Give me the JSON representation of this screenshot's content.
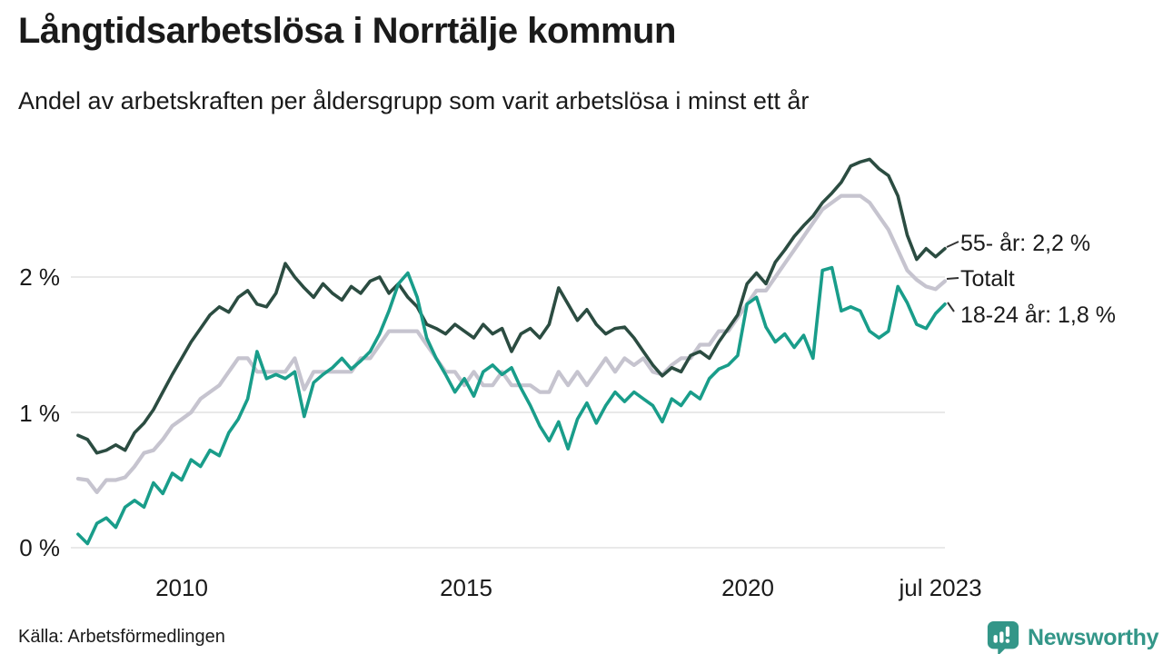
{
  "header": {
    "title": "Långtidsarbetslösa i Norrtälje kommun",
    "subtitle": "Andel av arbetskraften per åldersgrupp som varit arbetslösa i minst ett år"
  },
  "source": {
    "label": "Källa: Arbetsförmedlingen"
  },
  "branding": {
    "name": "Newsworthy",
    "icon": "bar-chart-speech-bubble-icon",
    "color": "#339688"
  },
  "colors": {
    "series_55": "#2b4c41",
    "series_totalt": "#c6c4cf",
    "series_1824": "#199d8a",
    "gridline": "#e2e2e2",
    "text": "#1a1a1a",
    "connector": "#333333"
  },
  "chart_data": {
    "type": "line",
    "title": "Långtidsarbetslösa i Norrtälje kommun",
    "subtitle": "Andel av arbetskraften per åldersgrupp som varit arbetslösa i minst ett år",
    "unit": "% av arbetskraften",
    "grid": "horizontal",
    "legend_position": "end-of-line labels, right side",
    "x_axis": {
      "range": [
        2008.04,
        2023.5
      ],
      "ticks": [
        "2010",
        "2015",
        "2020",
        "jul 2023"
      ],
      "tick_values": [
        2010,
        2015,
        2020,
        2023.42
      ]
    },
    "y_axis": {
      "range": [
        0,
        3
      ],
      "ticks": [
        "0 %",
        "1 %",
        "2 %"
      ],
      "tick_values": [
        0,
        1,
        2
      ]
    },
    "x_start": 2008.1667,
    "x_step": 0.16667,
    "series": [
      {
        "name": "Totalt",
        "end_label": "Totalt",
        "color": "#c6c4cf",
        "values": [
          0.51,
          0.5,
          0.41,
          0.5,
          0.5,
          0.52,
          0.6,
          0.7,
          0.72,
          0.8,
          0.9,
          0.95,
          1.0,
          1.1,
          1.15,
          1.2,
          1.3,
          1.4,
          1.4,
          1.3,
          1.3,
          1.3,
          1.3,
          1.4,
          1.17,
          1.3,
          1.3,
          1.3,
          1.3,
          1.3,
          1.4,
          1.4,
          1.5,
          1.6,
          1.6,
          1.6,
          1.6,
          1.5,
          1.4,
          1.3,
          1.3,
          1.2,
          1.3,
          1.2,
          1.2,
          1.3,
          1.2,
          1.2,
          1.2,
          1.15,
          1.15,
          1.3,
          1.2,
          1.3,
          1.2,
          1.3,
          1.4,
          1.3,
          1.4,
          1.35,
          1.4,
          1.3,
          1.28,
          1.35,
          1.4,
          1.4,
          1.5,
          1.5,
          1.6,
          1.6,
          1.7,
          1.8,
          1.9,
          1.9,
          2.0,
          2.1,
          2.2,
          2.3,
          2.4,
          2.5,
          2.55,
          2.6,
          2.6,
          2.6,
          2.55,
          2.45,
          2.35,
          2.2,
          2.05,
          1.98,
          1.93,
          1.91,
          1.97
        ]
      },
      {
        "name": "55- år",
        "end_label": "55- år: 2,2 %",
        "latest_value": "2,2 %",
        "color": "#2b4c41",
        "values": [
          0.83,
          0.8,
          0.7,
          0.72,
          0.76,
          0.72,
          0.85,
          0.92,
          1.02,
          1.15,
          1.28,
          1.4,
          1.52,
          1.62,
          1.72,
          1.78,
          1.74,
          1.85,
          1.9,
          1.8,
          1.78,
          1.88,
          2.1,
          2.0,
          1.92,
          1.85,
          1.95,
          1.88,
          1.83,
          1.93,
          1.88,
          1.97,
          2.0,
          1.88,
          1.95,
          1.85,
          1.78,
          1.65,
          1.62,
          1.58,
          1.65,
          1.6,
          1.55,
          1.65,
          1.58,
          1.62,
          1.45,
          1.58,
          1.62,
          1.55,
          1.65,
          1.92,
          1.8,
          1.68,
          1.76,
          1.65,
          1.58,
          1.62,
          1.63,
          1.55,
          1.45,
          1.35,
          1.27,
          1.33,
          1.3,
          1.42,
          1.45,
          1.4,
          1.52,
          1.62,
          1.72,
          1.95,
          2.03,
          1.95,
          2.11,
          2.2,
          2.3,
          2.38,
          2.45,
          2.55,
          2.62,
          2.7,
          2.82,
          2.85,
          2.87,
          2.8,
          2.75,
          2.6,
          2.31,
          2.13,
          2.21,
          2.15,
          2.21
        ]
      },
      {
        "name": "18-24 år",
        "end_label": "18-24 år: 1,8 %",
        "latest_value": "1,8 %",
        "color": "#199d8a",
        "values": [
          0.1,
          0.03,
          0.18,
          0.22,
          0.15,
          0.3,
          0.35,
          0.3,
          0.48,
          0.4,
          0.55,
          0.5,
          0.65,
          0.6,
          0.72,
          0.68,
          0.85,
          0.95,
          1.1,
          1.45,
          1.25,
          1.28,
          1.25,
          1.3,
          0.97,
          1.22,
          1.28,
          1.33,
          1.4,
          1.32,
          1.38,
          1.45,
          1.58,
          1.75,
          1.95,
          2.03,
          1.85,
          1.55,
          1.4,
          1.28,
          1.15,
          1.25,
          1.12,
          1.3,
          1.35,
          1.28,
          1.33,
          1.18,
          1.05,
          0.9,
          0.79,
          0.93,
          0.73,
          0.95,
          1.07,
          0.92,
          1.05,
          1.15,
          1.08,
          1.15,
          1.1,
          1.05,
          0.93,
          1.1,
          1.05,
          1.15,
          1.1,
          1.25,
          1.32,
          1.35,
          1.42,
          1.8,
          1.85,
          1.63,
          1.52,
          1.58,
          1.48,
          1.57,
          1.4,
          2.05,
          2.07,
          1.75,
          1.78,
          1.75,
          1.6,
          1.55,
          1.6,
          1.93,
          1.81,
          1.65,
          1.62,
          1.73,
          1.8
        ]
      }
    ]
  }
}
